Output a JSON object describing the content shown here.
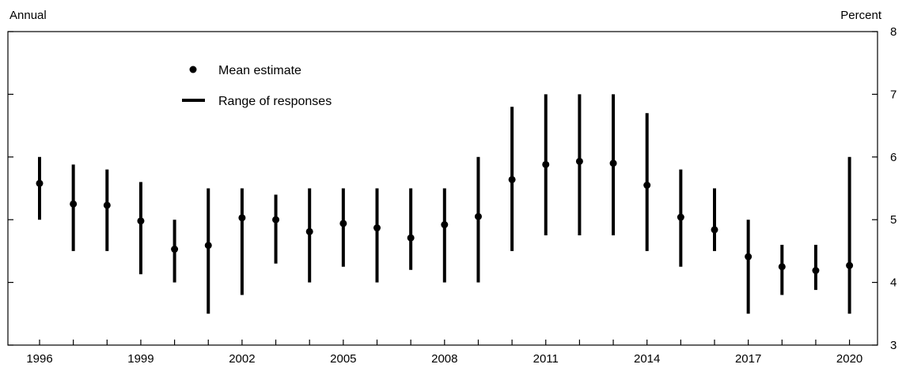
{
  "chart_data": {
    "type": "scatter",
    "title": "",
    "left_label": "Annual",
    "right_label": "Percent",
    "xlabel": "",
    "ylabel": "Percent",
    "ylim": [
      3,
      8
    ],
    "y_ticks": [
      "3",
      "4",
      "5",
      "6",
      "7",
      "8"
    ],
    "x_tick_labels": [
      "1996",
      "1999",
      "2002",
      "2005",
      "2008",
      "2011",
      "2014",
      "2017",
      "2020"
    ],
    "legend": {
      "position": "top-left",
      "mean_label": "Mean estimate",
      "range_label": "Range of responses"
    },
    "series": [
      {
        "name": "Mean estimate",
        "x": [
          1996,
          1997,
          1998,
          1999,
          2000,
          2001,
          2002,
          2003,
          2004,
          2005,
          2006,
          2007,
          2008,
          2009,
          2010,
          2011,
          2012,
          2013,
          2014,
          2015,
          2016,
          2017,
          2018,
          2019,
          2020
        ],
        "values": [
          5.58,
          5.25,
          5.23,
          4.98,
          4.53,
          4.59,
          5.03,
          5.0,
          4.81,
          4.94,
          4.87,
          4.71,
          4.92,
          5.05,
          5.64,
          5.88,
          5.93,
          5.9,
          5.55,
          5.04,
          4.84,
          4.41,
          4.25,
          4.19,
          4.27
        ]
      },
      {
        "name": "Range of responses",
        "x": [
          1996,
          1997,
          1998,
          1999,
          2000,
          2001,
          2002,
          2003,
          2004,
          2005,
          2006,
          2007,
          2008,
          2009,
          2010,
          2011,
          2012,
          2013,
          2014,
          2015,
          2016,
          2017,
          2018,
          2019,
          2020
        ],
        "low": [
          5.0,
          4.5,
          4.5,
          4.13,
          4.0,
          3.5,
          3.8,
          4.3,
          4.0,
          4.25,
          4.0,
          4.2,
          4.0,
          4.0,
          4.5,
          4.75,
          4.75,
          4.75,
          4.5,
          4.25,
          4.5,
          3.5,
          3.8,
          3.88,
          3.5
        ],
        "high": [
          6.0,
          5.88,
          5.8,
          5.6,
          5.0,
          5.5,
          5.5,
          5.4,
          5.5,
          5.5,
          5.5,
          5.5,
          5.5,
          6.0,
          6.8,
          7.0,
          7.0,
          7.0,
          6.7,
          5.8,
          5.5,
          5.0,
          4.6,
          4.6,
          6.0
        ]
      }
    ]
  }
}
